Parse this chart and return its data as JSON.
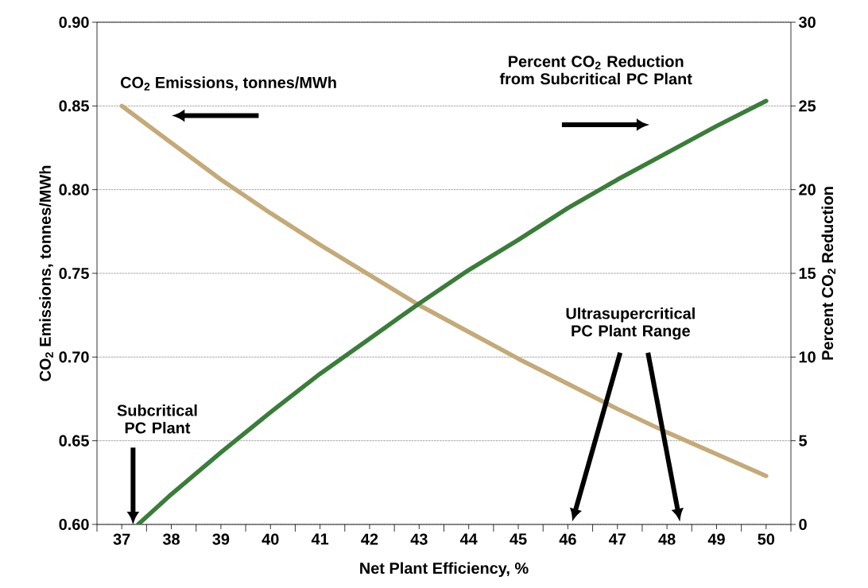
{
  "chart_data": {
    "type": "line",
    "xlabel": "Net Plant Efficiency, %",
    "ylabel": "CO$_{2}$ Emissions, tonnes/MWh",
    "y2label": "Percent CO$_{2}$ Reduction",
    "xlim": [
      36.5,
      50.5
    ],
    "xticks": [
      37,
      38,
      39,
      40,
      41,
      42,
      43,
      44,
      45,
      46,
      47,
      48,
      49,
      50
    ],
    "ylim": [
      0.6,
      0.9
    ],
    "yticks": [
      {
        "value": 0.6,
        "label": "0.60"
      },
      {
        "value": 0.65,
        "label": "0.65"
      },
      {
        "value": 0.7,
        "label": "0.70"
      },
      {
        "value": 0.75,
        "label": "0.75"
      },
      {
        "value": 0.8,
        "label": "0.80"
      },
      {
        "value": 0.85,
        "label": "0.85"
      },
      {
        "value": 0.9,
        "label": "0.90"
      }
    ],
    "y2lim": [
      0,
      30
    ],
    "y2ticks": [
      0,
      5,
      10,
      15,
      20,
      25,
      30
    ],
    "grid": "y",
    "series": [
      {
        "color": "#c4aa78",
        "x": [
          37,
          38,
          39,
          40,
          41,
          42,
          43,
          44,
          45,
          46,
          47,
          48,
          49,
          50
        ],
        "values": [
          0.85,
          0.828,
          0.806,
          0.786,
          0.767,
          0.749,
          0.731,
          0.715,
          0.699,
          0.684,
          0.669,
          0.655,
          0.642,
          0.629
        ]
      },
      {
        "color": "#3a7d3a",
        "axis": "y2",
        "x": [
          37.33,
          38,
          39,
          40,
          41,
          42,
          43,
          44,
          45,
          46,
          47,
          48,
          49,
          50
        ],
        "values": [
          0,
          1.8,
          4.3,
          6.7,
          9.0,
          11.1,
          13.2,
          15.2,
          17.0,
          18.9,
          20.6,
          22.2,
          23.8,
          25.3
        ]
      }
    ],
    "annotations": [
      "CO$_{2}$ Emissions, tonnes/MWh",
      "Percent CO$_{2}$ Reduction from Subcritical PC Plant",
      "Subcritical PC Plant",
      "Ultrasupercritical PC Plant Range"
    ]
  }
}
